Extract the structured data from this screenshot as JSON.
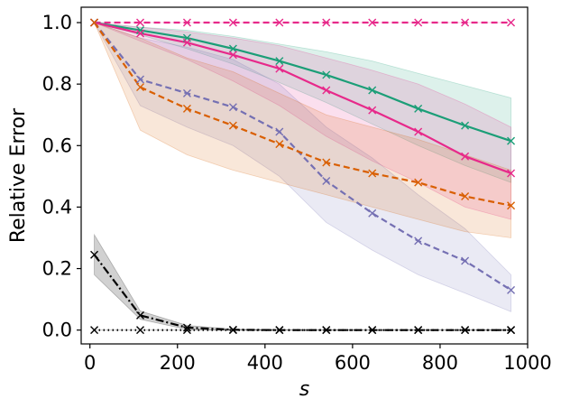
{
  "chart_data": {
    "type": "line",
    "title": "",
    "xlabel": "s",
    "ylabel": "Relative Error",
    "xlim": [
      -20,
      1000
    ],
    "ylim": [
      -0.045,
      1.05
    ],
    "xticks": [
      0,
      200,
      400,
      600,
      800,
      1000
    ],
    "yticks": [
      0.0,
      0.2,
      0.4,
      0.6,
      0.8,
      1.0
    ],
    "xtick_labels": [
      "0",
      "200",
      "400",
      "600",
      "800",
      "1000"
    ],
    "ytick_labels": [
      "0.0",
      "0.2",
      "0.4",
      "0.6",
      "0.8",
      "1.0"
    ],
    "grid": false,
    "legend": "none",
    "x": [
      10,
      115,
      222,
      327,
      433,
      540,
      645,
      750,
      857,
      962
    ],
    "series": [
      {
        "name": "magenta-dashed",
        "color": "#e7298a",
        "dash": "dashed",
        "values": [
          1.0,
          1.0,
          1.0,
          1.0,
          1.0,
          1.0,
          1.0,
          1.0,
          1.0,
          1.0
        ],
        "lower": [
          1.0,
          1.0,
          1.0,
          1.0,
          1.0,
          1.0,
          1.0,
          1.0,
          1.0,
          1.0
        ],
        "upper": [
          1.0,
          1.0,
          1.0,
          1.0,
          1.0,
          1.0,
          1.0,
          1.0,
          1.0,
          1.0
        ]
      },
      {
        "name": "green-solid",
        "color": "#1b9e77",
        "dash": "solid",
        "values": [
          1.0,
          0.975,
          0.95,
          0.915,
          0.875,
          0.83,
          0.78,
          0.72,
          0.665,
          0.615
        ],
        "lower": [
          1.0,
          0.96,
          0.915,
          0.865,
          0.805,
          0.74,
          0.67,
          0.6,
          0.535,
          0.48
        ],
        "upper": [
          1.0,
          0.985,
          0.975,
          0.955,
          0.93,
          0.905,
          0.875,
          0.835,
          0.795,
          0.755
        ]
      },
      {
        "name": "pink-solid",
        "color": "#e7298a",
        "dash": "solid",
        "values": [
          1.0,
          0.965,
          0.935,
          0.895,
          0.85,
          0.78,
          0.715,
          0.645,
          0.565,
          0.51
        ],
        "lower": [
          1.0,
          0.94,
          0.88,
          0.81,
          0.73,
          0.63,
          0.55,
          0.48,
          0.4,
          0.36
        ],
        "upper": [
          1.0,
          0.985,
          0.97,
          0.95,
          0.925,
          0.885,
          0.845,
          0.8,
          0.735,
          0.66
        ]
      },
      {
        "name": "purple-dashed",
        "color": "#7570b3",
        "dash": "dashed",
        "values": [
          1.0,
          0.815,
          0.77,
          0.725,
          0.645,
          0.485,
          0.38,
          0.29,
          0.225,
          0.13
        ],
        "lower": [
          1.0,
          0.73,
          0.66,
          0.6,
          0.5,
          0.35,
          0.26,
          0.18,
          0.12,
          0.06
        ],
        "upper": [
          1.0,
          0.95,
          0.92,
          0.88,
          0.8,
          0.66,
          0.56,
          0.44,
          0.33,
          0.18
        ]
      },
      {
        "name": "orange-dashed",
        "color": "#d95f02",
        "dash": "dashed",
        "values": [
          1.0,
          0.79,
          0.72,
          0.665,
          0.605,
          0.545,
          0.51,
          0.48,
          0.435,
          0.405
        ],
        "lower": [
          1.0,
          0.65,
          0.57,
          0.52,
          0.48,
          0.44,
          0.4,
          0.36,
          0.32,
          0.3
        ],
        "upper": [
          1.0,
          0.95,
          0.885,
          0.84,
          0.77,
          0.7,
          0.66,
          0.62,
          0.57,
          0.52
        ]
      },
      {
        "name": "black-dashdot",
        "color": "#000000",
        "dash": "dashdot",
        "values": [
          0.245,
          0.048,
          0.008,
          0.001,
          0.0,
          0.0,
          0.0,
          0.0,
          0.0,
          0.0
        ],
        "lower": [
          0.18,
          0.035,
          0.002,
          0.0,
          0.0,
          0.0,
          0.0,
          0.0,
          0.0,
          0.0
        ],
        "upper": [
          0.31,
          0.062,
          0.015,
          0.003,
          0.001,
          0.0,
          0.0,
          0.0,
          0.0,
          0.0
        ]
      },
      {
        "name": "black-dotted",
        "color": "#000000",
        "dash": "dotted",
        "values": [
          0.0,
          0.0,
          0.0,
          0.0,
          0.0,
          0.0,
          0.0,
          0.0,
          0.0,
          0.0
        ],
        "lower": [
          0.0,
          0.0,
          0.0,
          0.0,
          0.0,
          0.0,
          0.0,
          0.0,
          0.0,
          0.0
        ],
        "upper": [
          0.0,
          0.0,
          0.0,
          0.0,
          0.0,
          0.0,
          0.0,
          0.0,
          0.0,
          0.0
        ]
      }
    ]
  }
}
